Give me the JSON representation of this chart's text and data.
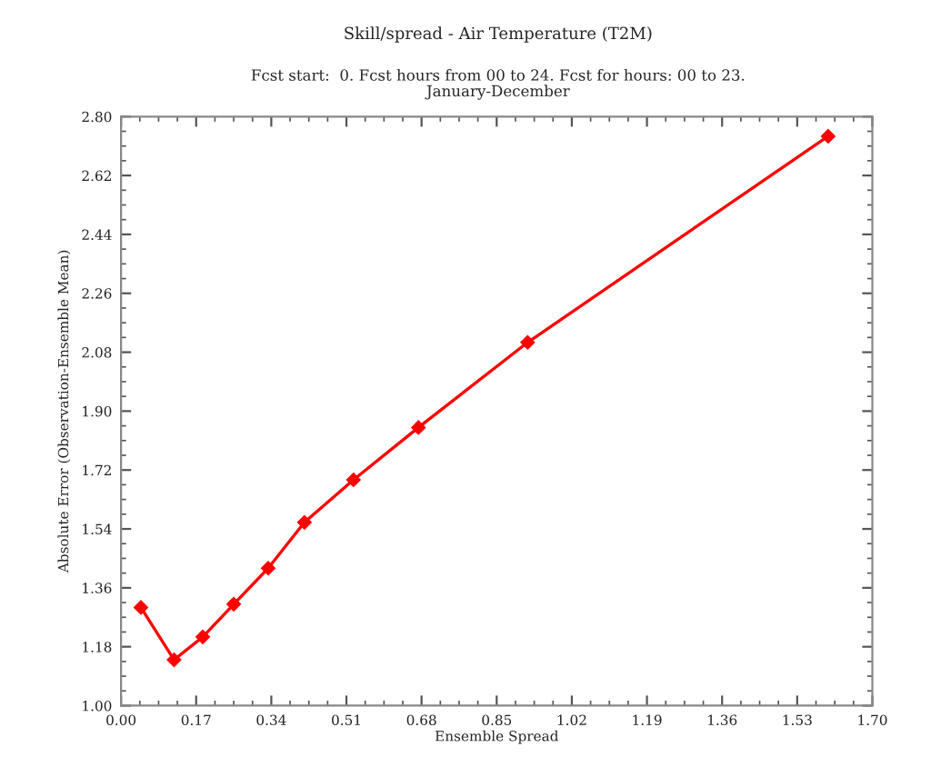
{
  "chart_data": {
    "type": "line",
    "title": "Skill/spread - Air Temperature (T2M)",
    "subtitle": "Fcst start:  0. Fcst hours from 00 to 24. Fcst for hours: 00 to 23.\nJanuary-December",
    "xlabel": "Ensemble Spread",
    "ylabel": "Absolute Error (Observation-Ensemble Mean)",
    "x": [
      0.045,
      0.12,
      0.185,
      0.255,
      0.333,
      0.415,
      0.526,
      0.673,
      0.92,
      1.6
    ],
    "series": [
      {
        "color": "#ff0000",
        "values": [
          1.3,
          1.14,
          1.21,
          1.31,
          1.42,
          1.56,
          1.69,
          1.85,
          2.11,
          2.74
        ]
      }
    ],
    "xlim": [
      0,
      1.7
    ],
    "ylim": [
      1,
      2.8
    ],
    "xticks": [
      {
        "value": 0,
        "label": "0.00"
      },
      0.17,
      0.34,
      0.51,
      0.68,
      0.85,
      1.02,
      1.19,
      1.36,
      1.53,
      {
        "value": 1.7,
        "label": "1.70"
      }
    ],
    "yticks": [
      {
        "value": 1,
        "label": "1.00"
      },
      1.18,
      1.36,
      1.54,
      1.72,
      {
        "value": 1.9,
        "label": "1.90"
      },
      2.08,
      2.26,
      2.44,
      2.62,
      {
        "value": 2.8,
        "label": "2.80"
      }
    ],
    "grid": false,
    "marker": "diamond",
    "line_style": "solid"
  }
}
